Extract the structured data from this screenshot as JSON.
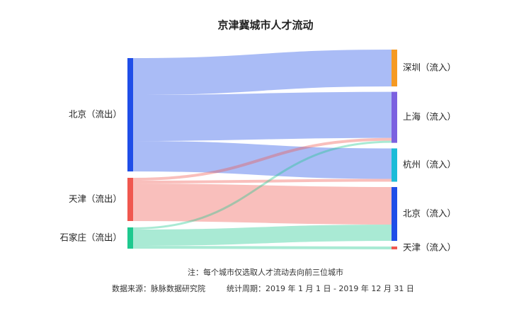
{
  "chart_data": {
    "type": "sankey",
    "title": "京津冀城市人才流动",
    "nodes": [
      {
        "name": "北京（流出）",
        "color": "#1f4ee8",
        "side": "left"
      },
      {
        "name": "天津（流出）",
        "color": "#f0574f",
        "side": "left"
      },
      {
        "name": "石家庄（流出）",
        "color": "#1ec98f",
        "side": "left"
      },
      {
        "name": "深圳（流入）",
        "color": "#f59a23",
        "side": "right"
      },
      {
        "name": "上海（流入）",
        "color": "#7b61e0",
        "side": "right"
      },
      {
        "name": "杭州（流入）",
        "color": "#1bbcd8",
        "side": "right"
      },
      {
        "name": "北京（流入）",
        "color": "#1f4ee8",
        "side": "right"
      },
      {
        "name": "天津（流入）",
        "color": "#f0574f",
        "side": "right"
      }
    ],
    "links": [
      {
        "source": 0,
        "target": 3,
        "value": 52
      },
      {
        "source": 0,
        "target": 4,
        "value": 65
      },
      {
        "source": 0,
        "target": 5,
        "value": 43
      },
      {
        "source": 1,
        "target": 4,
        "value": 4
      },
      {
        "source": 1,
        "target": 5,
        "value": 4
      },
      {
        "source": 1,
        "target": 6,
        "value": 53
      },
      {
        "source": 2,
        "target": 4,
        "value": 3
      },
      {
        "source": 2,
        "target": 6,
        "value": 23
      },
      {
        "source": 2,
        "target": 7,
        "value": 4
      }
    ],
    "notes": [
      "注：每个城市仅选取人才流动去向前三位城市",
      "数据来源：脉脉数据研究院",
      "统计周期：2019 年 1 月 1 日 - 2019 年 12 月 31 日"
    ]
  }
}
